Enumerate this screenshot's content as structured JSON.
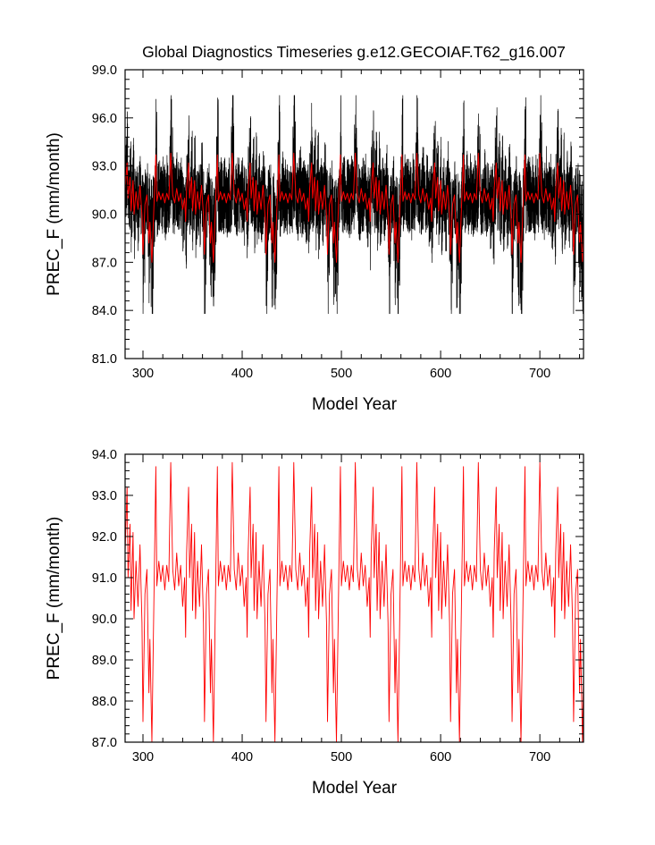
{
  "title": "Global Diagnostics Timeseries g.e12.GECOIAF.T62_g16.007",
  "chart_data": [
    {
      "type": "line",
      "title": "Global Diagnostics Timeseries g.e12.GECOIAF.T62_g16.007",
      "xlabel": "Model Year",
      "ylabel": "PREC_F (mm/month)",
      "xlim": [
        282,
        744
      ],
      "ylim": [
        81.0,
        99.0
      ],
      "xticks": [
        "300",
        "400",
        "500",
        "600",
        "700"
      ],
      "yticks": [
        "81.0",
        "84.0",
        "87.0",
        "90.0",
        "93.0",
        "96.0",
        "99.0"
      ],
      "cycle_years": 62,
      "series": [
        {
          "color": "#000000",
          "resolution": "monthly",
          "mean": 90.9,
          "min": 83.8,
          "max": 97.4
        },
        {
          "color": "#ff0000",
          "resolution": "annual",
          "mean": 90.9,
          "min": 87.0,
          "max": 93.8
        }
      ],
      "grid": false
    },
    {
      "type": "line",
      "xlabel": "Model Year",
      "ylabel": "PREC_F (mm/month)",
      "xlim": [
        282,
        744
      ],
      "ylim": [
        87.0,
        94.0
      ],
      "xticks": [
        "300",
        "400",
        "500",
        "600",
        "700"
      ],
      "yticks": [
        "87.0",
        "88.0",
        "89.0",
        "90.0",
        "91.0",
        "92.0",
        "93.0",
        "94.0"
      ],
      "cycle_years": 62,
      "cycle_pattern": [
        {
          "year": 282,
          "value": 91.6
        },
        {
          "year": 284,
          "value": 93.2
        },
        {
          "year": 285,
          "value": 91.0
        },
        {
          "year": 287,
          "value": 92.3
        },
        {
          "year": 288,
          "value": 90.2
        },
        {
          "year": 290,
          "value": 92.1
        },
        {
          "year": 291,
          "value": 90.0
        },
        {
          "year": 293,
          "value": 91.4
        },
        {
          "year": 295,
          "value": 90.3
        },
        {
          "year": 297,
          "value": 91.8
        },
        {
          "year": 299,
          "value": 89.9
        },
        {
          "year": 300,
          "value": 87.5
        },
        {
          "year": 302,
          "value": 90.6
        },
        {
          "year": 304,
          "value": 91.2
        },
        {
          "year": 306,
          "value": 88.2
        },
        {
          "year": 307,
          "value": 89.5
        },
        {
          "year": 309,
          "value": 87.0
        },
        {
          "year": 311,
          "value": 90.4
        },
        {
          "year": 313,
          "value": 93.7
        },
        {
          "year": 314,
          "value": 90.8
        },
        {
          "year": 316,
          "value": 91.4
        },
        {
          "year": 318,
          "value": 90.9
        },
        {
          "year": 320,
          "value": 91.3
        },
        {
          "year": 322,
          "value": 90.7
        },
        {
          "year": 324,
          "value": 91.3
        },
        {
          "year": 326,
          "value": 90.9
        },
        {
          "year": 328,
          "value": 93.8
        },
        {
          "year": 330,
          "value": 91.2
        },
        {
          "year": 332,
          "value": 90.7
        },
        {
          "year": 334,
          "value": 91.6
        },
        {
          "year": 336,
          "value": 90.8
        },
        {
          "year": 338,
          "value": 91.3
        },
        {
          "year": 340,
          "value": 90.3
        },
        {
          "year": 342,
          "value": 91.0
        },
        {
          "year": 344,
          "value": 88.1
        },
        {
          "year": 346,
          "value": 90.6
        }
      ],
      "series": [
        {
          "color": "#ff0000",
          "resolution": "annual",
          "mean": 90.9,
          "min": 87.0,
          "max": 93.8
        }
      ],
      "grid": false
    }
  ]
}
